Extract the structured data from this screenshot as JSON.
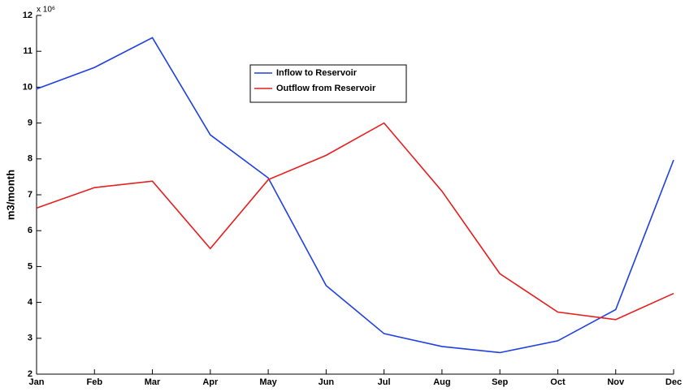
{
  "chart_data": {
    "type": "line",
    "y_multiplier": "x 10⁶",
    "ylabel": "m3/month",
    "categories": [
      "Jan",
      "Feb",
      "Mar",
      "Apr",
      "May",
      "Jun",
      "Jul",
      "Aug",
      "Sep",
      "Oct",
      "Nov",
      "Dec"
    ],
    "series": [
      {
        "name": "Inflow to Reservoir",
        "color": "#1f3fe0",
        "values": [
          9.95,
          10.55,
          11.38,
          8.67,
          7.47,
          4.47,
          3.13,
          2.77,
          2.6,
          2.93,
          3.8,
          7.97
        ]
      },
      {
        "name": "Outflow from Reservoir",
        "color": "#e61e1e",
        "values": [
          6.63,
          7.2,
          7.38,
          5.5,
          7.42,
          8.1,
          9.0,
          7.1,
          4.8,
          3.73,
          3.52,
          4.25
        ]
      }
    ],
    "ylim": [
      2,
      12
    ],
    "yticks": [
      2,
      3,
      4,
      5,
      6,
      7,
      8,
      9,
      10,
      11,
      12
    ],
    "grid": false
  }
}
